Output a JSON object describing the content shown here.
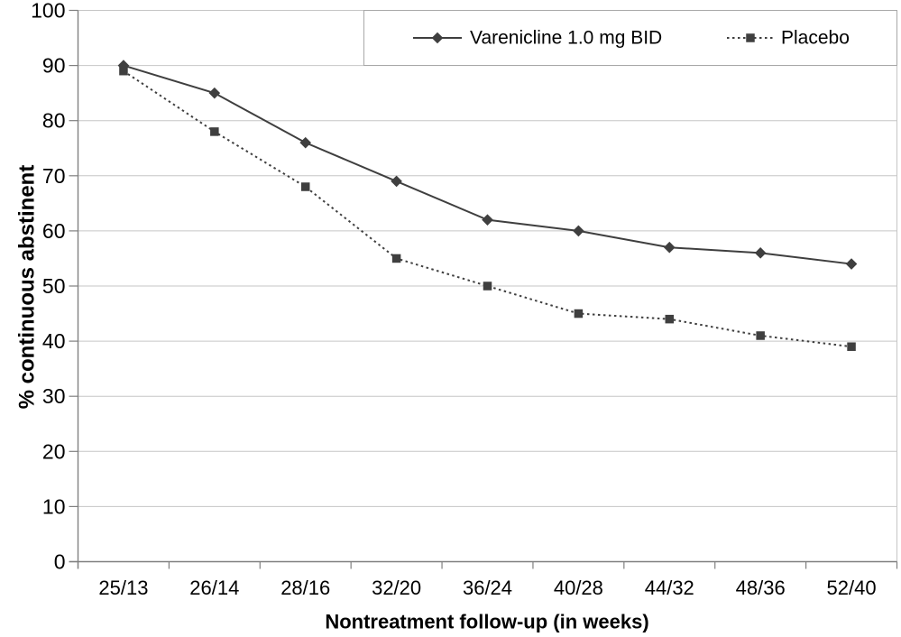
{
  "chart_data": {
    "type": "line",
    "title": "",
    "xlabel": "Nontreatment follow-up (in weeks)",
    "ylabel": "% continuous abstinent",
    "categories": [
      "25/13",
      "26/14",
      "28/16",
      "32/20",
      "36/24",
      "40/28",
      "44/32",
      "48/36",
      "52/40"
    ],
    "series": [
      {
        "name": "Varenicline 1.0 mg BID",
        "values": [
          90,
          85,
          76,
          69,
          62,
          60,
          57,
          56,
          54
        ],
        "marker": "diamond",
        "line_style": "solid"
      },
      {
        "name": "Placebo",
        "values": [
          89,
          78,
          68,
          55,
          50,
          45,
          44,
          41,
          39
        ],
        "marker": "square",
        "line_style": "dotted"
      }
    ],
    "ylim": [
      0,
      100
    ],
    "yticks": [
      0,
      10,
      20,
      30,
      40,
      50,
      60,
      70,
      80,
      90,
      100
    ],
    "grid": "horizontal",
    "legend_position": "top-inside-bordered"
  },
  "colors": {
    "background": "#ffffff",
    "series": "#3f3f3f",
    "gridline": "#c6c6c6",
    "axis": "#808080",
    "legend_border": "#a8a8a8",
    "text": "#000000"
  }
}
